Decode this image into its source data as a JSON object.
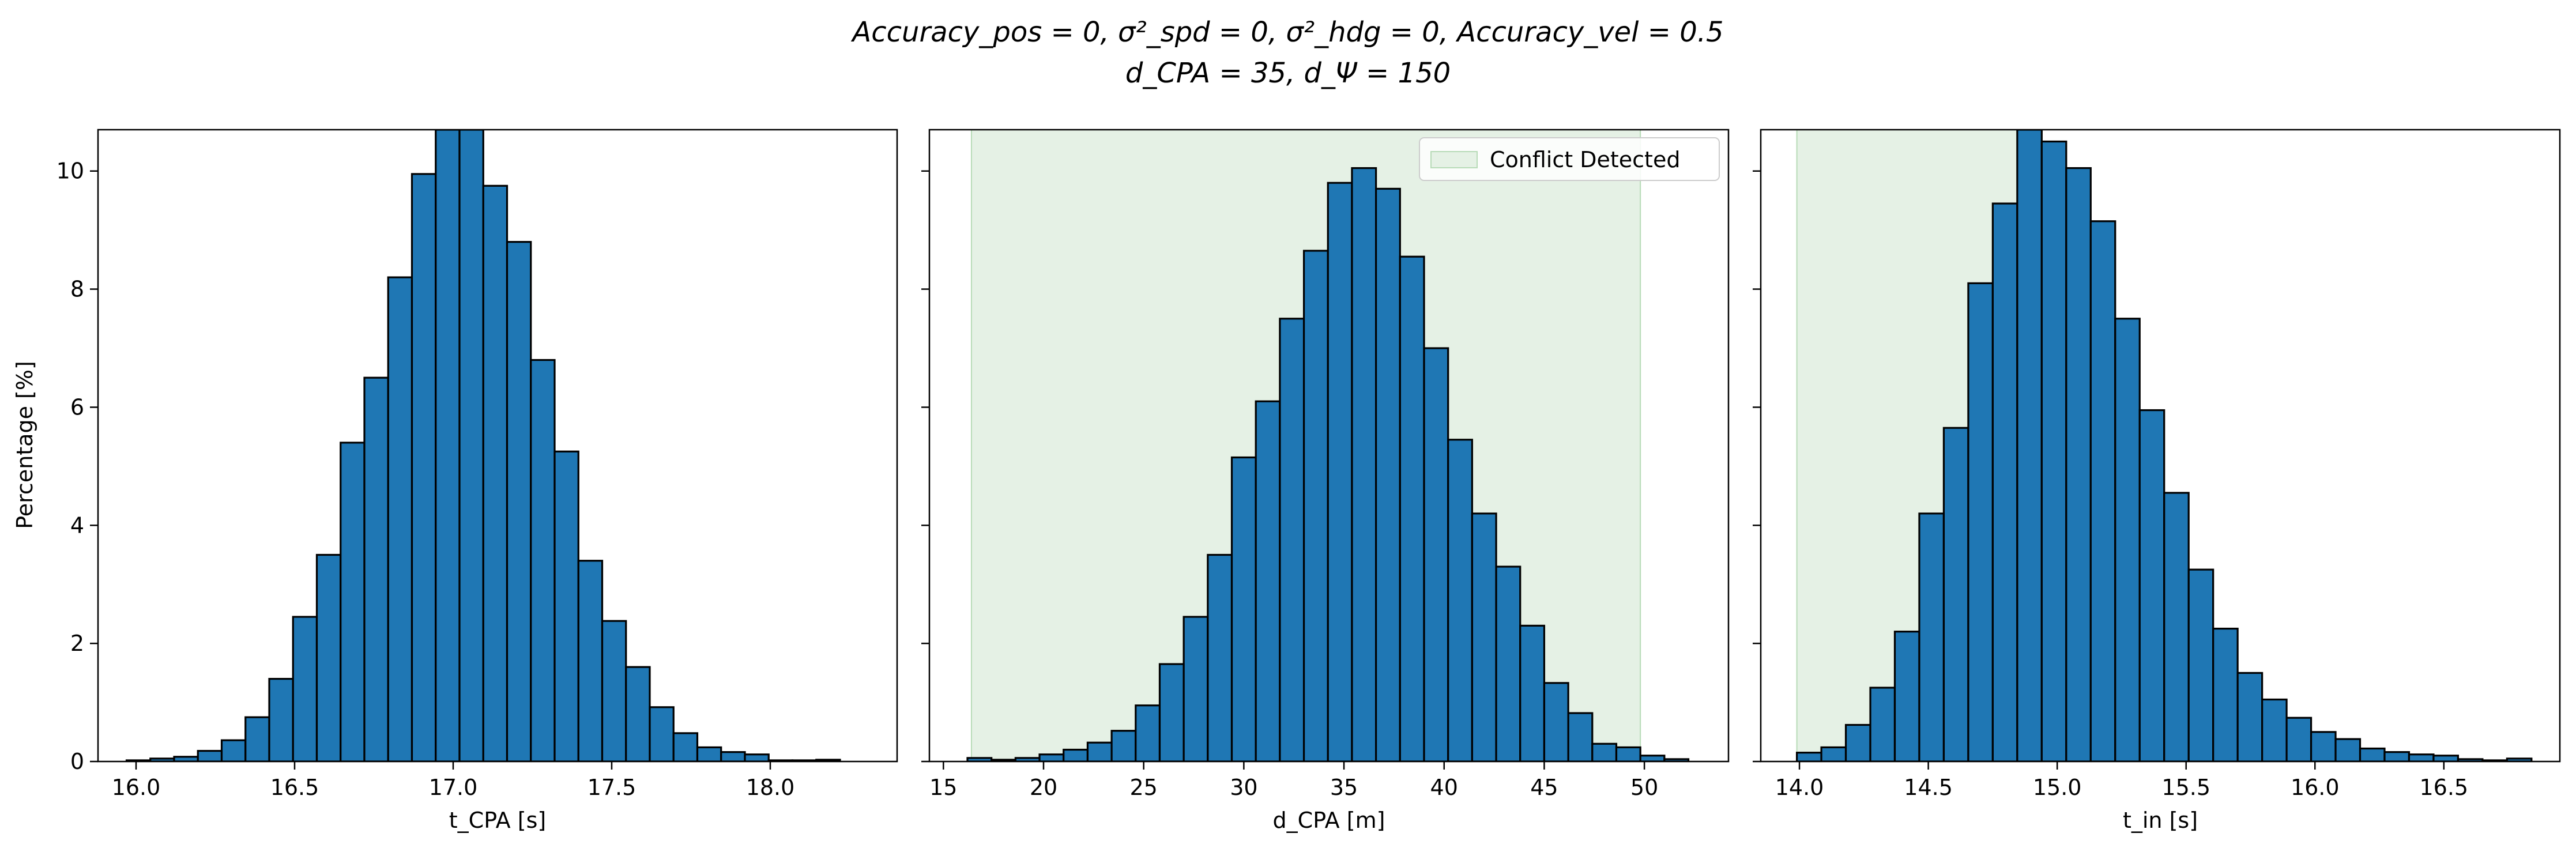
{
  "figure": {
    "title_line1": "Accuracy_pos = 0, σ²_spd = 0, σ²_hdg = 0, Accuracy_vel = 0.5",
    "title_line2": "d_CPA = 35, d_Ψ = 150",
    "ylabel": "Percentage [%]"
  },
  "colors": {
    "bar_fill": "#1f77b4",
    "bar_edge": "#000000",
    "conflict_fill": "#e5f1e5",
    "conflict_edge": "#b7dbb7"
  },
  "chart_data": [
    {
      "type": "bar",
      "title": "",
      "xlabel": "t_CPA [s]",
      "ylabel": "Percentage [%]",
      "xlim": [
        15.88,
        18.4
      ],
      "ylim": [
        0,
        10.7
      ],
      "xticks": [
        "16.0",
        "16.5",
        "17.0",
        "17.5",
        "18.0"
      ],
      "yticks": [
        "0",
        "2",
        "4",
        "6",
        "8",
        "10"
      ],
      "bin_start": 15.97,
      "bin_width": 0.075,
      "values": [
        0.02,
        0.05,
        0.08,
        0.18,
        0.36,
        0.75,
        1.4,
        2.45,
        3.5,
        5.4,
        6.5,
        8.2,
        9.95,
        10.7,
        10.7,
        9.75,
        8.8,
        6.8,
        5.25,
        3.4,
        2.38,
        1.6,
        0.92,
        0.48,
        0.24,
        0.16,
        0.12,
        0.02,
        0.02,
        0.03
      ],
      "shaded_region": null,
      "legend": null
    },
    {
      "type": "bar",
      "title": "",
      "xlabel": "d_CPA [m]",
      "ylabel": "",
      "xlim": [
        14.3,
        54.2
      ],
      "ylim": [
        0,
        10.7
      ],
      "xticks": [
        "15",
        "20",
        "25",
        "30",
        "35",
        "40",
        "45",
        "50"
      ],
      "yticks": [
        "0",
        "2",
        "4",
        "6",
        "8",
        "10"
      ],
      "bin_start": 16.2,
      "bin_width": 1.2,
      "values": [
        0.06,
        0.03,
        0.06,
        0.12,
        0.2,
        0.32,
        0.52,
        0.95,
        1.65,
        2.45,
        3.5,
        5.15,
        6.1,
        7.5,
        8.65,
        9.8,
        10.05,
        9.7,
        8.55,
        7.0,
        5.45,
        4.2,
        3.3,
        2.3,
        1.33,
        0.82,
        0.3,
        0.24,
        0.1,
        0.04
      ],
      "shaded_region": [
        16.4,
        49.8
      ],
      "legend": {
        "label": "Conflict Detected",
        "loc": "upper right"
      }
    },
    {
      "type": "bar",
      "title": "",
      "xlabel": "t_in [s]",
      "ylabel": "",
      "xlim": [
        13.85,
        16.95
      ],
      "ylim": [
        0,
        10.7
      ],
      "xticks": [
        "14.0",
        "14.5",
        "15.0",
        "15.5",
        "16.0",
        "16.5"
      ],
      "yticks": [
        "0",
        "2",
        "4",
        "6",
        "8",
        "10"
      ],
      "bin_start": 13.99,
      "bin_width": 0.095,
      "values": [
        0.15,
        0.24,
        0.62,
        1.25,
        2.2,
        4.2,
        5.65,
        8.1,
        9.45,
        10.7,
        10.5,
        10.05,
        9.15,
        7.5,
        5.95,
        4.55,
        3.25,
        2.25,
        1.5,
        1.05,
        0.74,
        0.5,
        0.38,
        0.22,
        0.16,
        0.12,
        0.1,
        0.04,
        0.02,
        0.05
      ],
      "shaded_region": [
        13.99,
        14.93
      ],
      "legend": null
    }
  ]
}
